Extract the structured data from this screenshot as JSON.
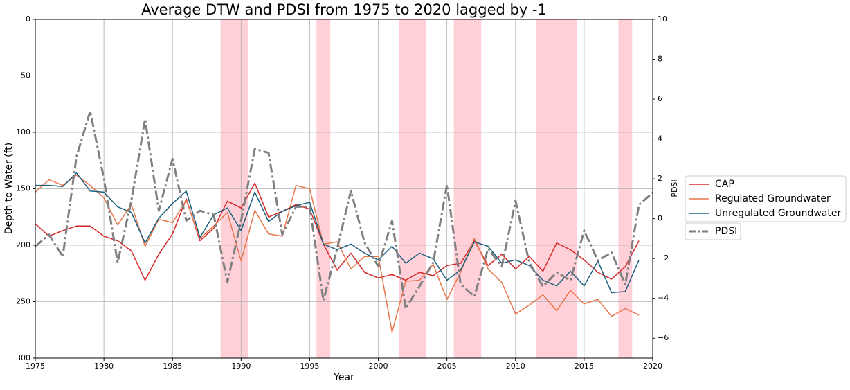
{
  "chart_data": {
    "type": "line",
    "title": "Average DTW and PDSI from 1975 to 2020 lagged by -1",
    "xlabel": "Year",
    "ylabel": "Depth to Water (ft)",
    "y2label": "PDSI",
    "x": [
      1975,
      1976,
      1977,
      1978,
      1979,
      1980,
      1981,
      1982,
      1983,
      1984,
      1985,
      1986,
      1987,
      1988,
      1989,
      1990,
      1991,
      1992,
      1993,
      1994,
      1995,
      1996,
      1997,
      1998,
      1999,
      2000,
      2001,
      2002,
      2003,
      2004,
      2005,
      2006,
      2007,
      2008,
      2009,
      2010,
      2011,
      2012,
      2013,
      2014,
      2015,
      2016,
      2017,
      2018,
      2019,
      2020
    ],
    "xlim": [
      1975,
      2020
    ],
    "xticks": [
      1975,
      1980,
      1985,
      1990,
      1995,
      2000,
      2005,
      2010,
      2015,
      2020
    ],
    "ylim": [
      300,
      0
    ],
    "yticks": [
      0,
      50,
      100,
      150,
      200,
      250,
      300
    ],
    "y2lim": [
      -7,
      10
    ],
    "y2ticks": [
      {
        "value": -6,
        "label": "−6"
      },
      {
        "value": -4,
        "label": "−4"
      },
      {
        "value": -2,
        "label": "−2"
      },
      0,
      2,
      4,
      6,
      8,
      10
    ],
    "grid": true,
    "legend": "right",
    "shaded_spans": [
      [
        1988.5,
        1990.5
      ],
      [
        1995.5,
        1996.5
      ],
      [
        2001.5,
        2003.5
      ],
      [
        2005.5,
        2007.5
      ],
      [
        2011.5,
        2014.5
      ],
      [
        2017.5,
        2018.5
      ]
    ],
    "span_color": "#ffc0cb",
    "series": [
      {
        "name": "CAP",
        "color": "#d62728",
        "values": [
          181,
          192,
          187,
          183,
          183,
          192,
          196,
          205,
          231,
          208,
          190,
          159,
          196,
          185,
          161,
          167,
          145,
          175,
          170,
          164,
          168,
          199,
          222,
          207,
          224,
          229,
          226,
          231,
          224,
          227,
          218,
          216,
          196,
          218,
          208,
          221,
          210,
          223,
          198,
          204,
          213,
          224,
          230,
          219,
          196,
          null
        ]
      },
      {
        "name": "Regulated Groundwater",
        "color": "#e8764a",
        "values": [
          153,
          142,
          147,
          138,
          147,
          158,
          182,
          164,
          201,
          177,
          180,
          160,
          194,
          183,
          171,
          214,
          169,
          190,
          192,
          147,
          150,
          199,
          197,
          221,
          210,
          210,
          277,
          232,
          231,
          217,
          248,
          224,
          194,
          221,
          233,
          261,
          253,
          244,
          258,
          240,
          252,
          248,
          263,
          256,
          262,
          null
        ]
      },
      {
        "name": "Unregulated Groundwater",
        "color": "#1b5e7e",
        "values": [
          147,
          147,
          148,
          136,
          152,
          153,
          166,
          171,
          198,
          176,
          163,
          152,
          193,
          173,
          167,
          187,
          153,
          179,
          170,
          165,
          162,
          199,
          204,
          199,
          207,
          213,
          201,
          216,
          207,
          212,
          231,
          222,
          197,
          201,
          216,
          213,
          218,
          231,
          236,
          223,
          236,
          214,
          242,
          241,
          213,
          null
        ]
      },
      {
        "name": "PDSI",
        "color": "#808080",
        "axis": "y2",
        "values": [
          -1.4,
          -0.8,
          -1.9,
          3.1,
          5.4,
          2.0,
          -2.2,
          0.9,
          5.0,
          0.4,
          3.0,
          -0.1,
          0.4,
          0.2,
          -3.2,
          -0.1,
          3.5,
          3.3,
          -0.8,
          0.6,
          0.6,
          -4.1,
          -1.5,
          1.4,
          -1.2,
          -2.4,
          -0.1,
          -4.5,
          -3.4,
          -2.2,
          1.7,
          -3.3,
          -3.9,
          -1.5,
          -2.4,
          0.9,
          -2.2,
          -3.4,
          -2.7,
          -3.1,
          -0.6,
          -2.1,
          -1.7,
          -3.3,
          0.7,
          1.3
        ]
      }
    ]
  }
}
